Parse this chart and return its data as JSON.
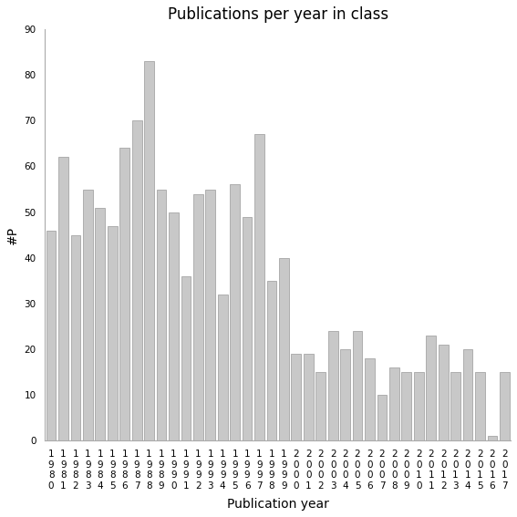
{
  "title": "Publications per year in class",
  "xlabel": "Publication year",
  "ylabel": "#P",
  "categories": [
    "1980",
    "1981",
    "1982",
    "1983",
    "1984",
    "1985",
    "1986",
    "1987",
    "1988",
    "1989",
    "1990",
    "1991",
    "1992",
    "1993",
    "1994",
    "1995",
    "1996",
    "1997",
    "1998",
    "1999",
    "2000",
    "2001",
    "2002",
    "2003",
    "2004",
    "2005",
    "2006",
    "2007",
    "2008",
    "2009",
    "2010",
    "2011",
    "2012",
    "2013",
    "2014",
    "2015",
    "2016",
    "2017"
  ],
  "values": [
    46,
    62,
    45,
    55,
    51,
    47,
    64,
    70,
    83,
    55,
    50,
    36,
    54,
    55,
    32,
    56,
    49,
    67,
    35,
    40,
    19,
    19,
    15,
    24,
    20,
    24,
    18,
    10,
    16,
    15,
    15,
    23,
    21,
    15,
    20,
    15,
    1,
    15
  ],
  "bar_color": "#c8c8c8",
  "bar_edgecolor": "#999999",
  "ylim": [
    0,
    90
  ],
  "yticks": [
    0,
    10,
    20,
    30,
    40,
    50,
    60,
    70,
    80,
    90
  ],
  "background_color": "#ffffff",
  "title_fontsize": 12,
  "label_fontsize": 10,
  "tick_fontsize": 7.5
}
